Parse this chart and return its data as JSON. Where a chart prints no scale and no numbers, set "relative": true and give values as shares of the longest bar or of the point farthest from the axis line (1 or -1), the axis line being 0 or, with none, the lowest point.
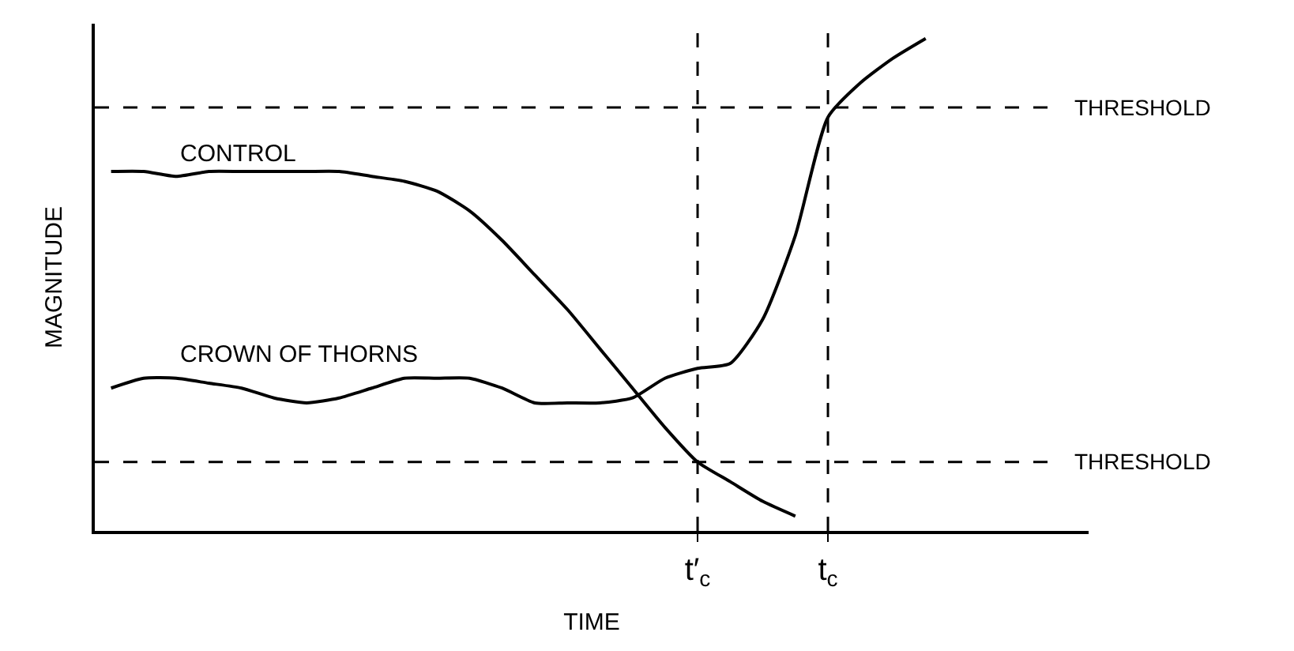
{
  "chart_data": {
    "type": "line",
    "relative": true,
    "xlabel": "TIME",
    "ylabel": "MAGNITUDE",
    "categories": [
      null,
      null,
      null,
      null,
      null,
      null,
      null,
      null,
      null,
      null,
      null,
      null,
      null,
      null,
      null,
      null,
      null,
      null,
      "t′$_{c}$",
      null,
      null,
      null,
      "t$_{c}$",
      null,
      null,
      null,
      null,
      null,
      null
    ],
    "series": [
      {
        "name": "CONTROL",
        "color": "#000000",
        "values": [
          0.73,
          0.73,
          0.72,
          0.73,
          0.73,
          0.73,
          0.73,
          0.73,
          0.72,
          0.71,
          0.69,
          0.65,
          0.59,
          0.52,
          0.45,
          0.37,
          0.29,
          0.21,
          0.14,
          0.1,
          0.06,
          0.03,
          null,
          null,
          null,
          null,
          null,
          null,
          null
        ]
      },
      {
        "name": "CROWN OF THORNS",
        "color": "#000000",
        "values": [
          0.29,
          0.31,
          0.31,
          0.3,
          0.29,
          0.27,
          0.26,
          0.27,
          0.29,
          0.31,
          0.31,
          0.31,
          0.29,
          0.26,
          0.26,
          0.26,
          0.27,
          0.31,
          0.33,
          0.34,
          0.43,
          0.6,
          0.84,
          0.91,
          0.96,
          1.0,
          null,
          null,
          null
        ]
      }
    ],
    "ref_lines": [
      {
        "axis": "y",
        "value": 0.86,
        "label": "THRESHOLD",
        "color": "#000000",
        "line_style": "dashed"
      },
      {
        "axis": "y",
        "value": 0.14,
        "label": "THRESHOLD",
        "color": "#000000",
        "line_style": "dashed"
      },
      {
        "axis": "x",
        "value": "t′$_{c}$",
        "color": "#000000",
        "line_style": "dashed"
      },
      {
        "axis": "x",
        "value": "t$_{c}$",
        "color": "#000000",
        "line_style": "dashed"
      }
    ],
    "legend": false,
    "marker": "none",
    "line_style": "solid"
  }
}
